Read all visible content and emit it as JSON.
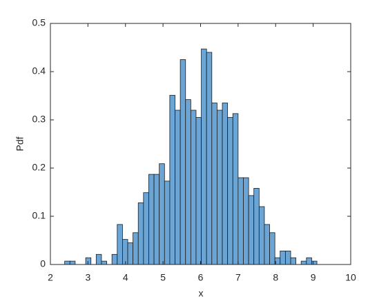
{
  "chart_data": {
    "type": "histogram",
    "xlabel": "x",
    "ylabel": "Pdf",
    "bins": [
      2.38,
      2.52,
      2.66,
      2.8,
      2.94,
      3.08,
      3.22,
      3.36,
      3.5,
      3.64,
      3.78,
      3.92,
      4.06,
      4.2,
      4.34,
      4.48,
      4.62,
      4.76,
      4.9,
      5.04,
      5.18,
      5.32,
      5.46,
      5.6,
      5.74,
      5.88,
      6.02,
      6.16,
      6.3,
      6.44,
      6.58,
      6.72,
      6.86,
      7.0,
      7.14,
      7.28,
      7.42,
      7.56,
      7.7,
      7.84,
      7.98,
      8.12,
      8.26,
      8.4,
      8.54,
      8.68,
      8.82,
      8.96,
      9.1
    ],
    "values": [
      0.007,
      0.007,
      0,
      0,
      0.014,
      0,
      0.021,
      0.007,
      0,
      0.021,
      0.083,
      0.052,
      0.045,
      0.066,
      0.128,
      0.149,
      0.187,
      0.187,
      0.209,
      0.173,
      0.351,
      0.32,
      0.425,
      0.342,
      0.32,
      0.305,
      0.447,
      0.44,
      0.335,
      0.32,
      0.335,
      0.305,
      0.313,
      0.18,
      0.18,
      0.143,
      0.158,
      0.12,
      0.083,
      0.066,
      0.014,
      0.028,
      0.028,
      0.014,
      0,
      0.007,
      0.014,
      0.007
    ],
    "color": "#6aa5d6",
    "xlim": [
      2,
      10
    ],
    "xticks": [
      2,
      3,
      4,
      5,
      6,
      7,
      8,
      9,
      10
    ],
    "ylim": [
      0,
      0.5
    ],
    "yticks": [
      0,
      0.1,
      0.2,
      0.3,
      0.4,
      0.5
    ]
  }
}
